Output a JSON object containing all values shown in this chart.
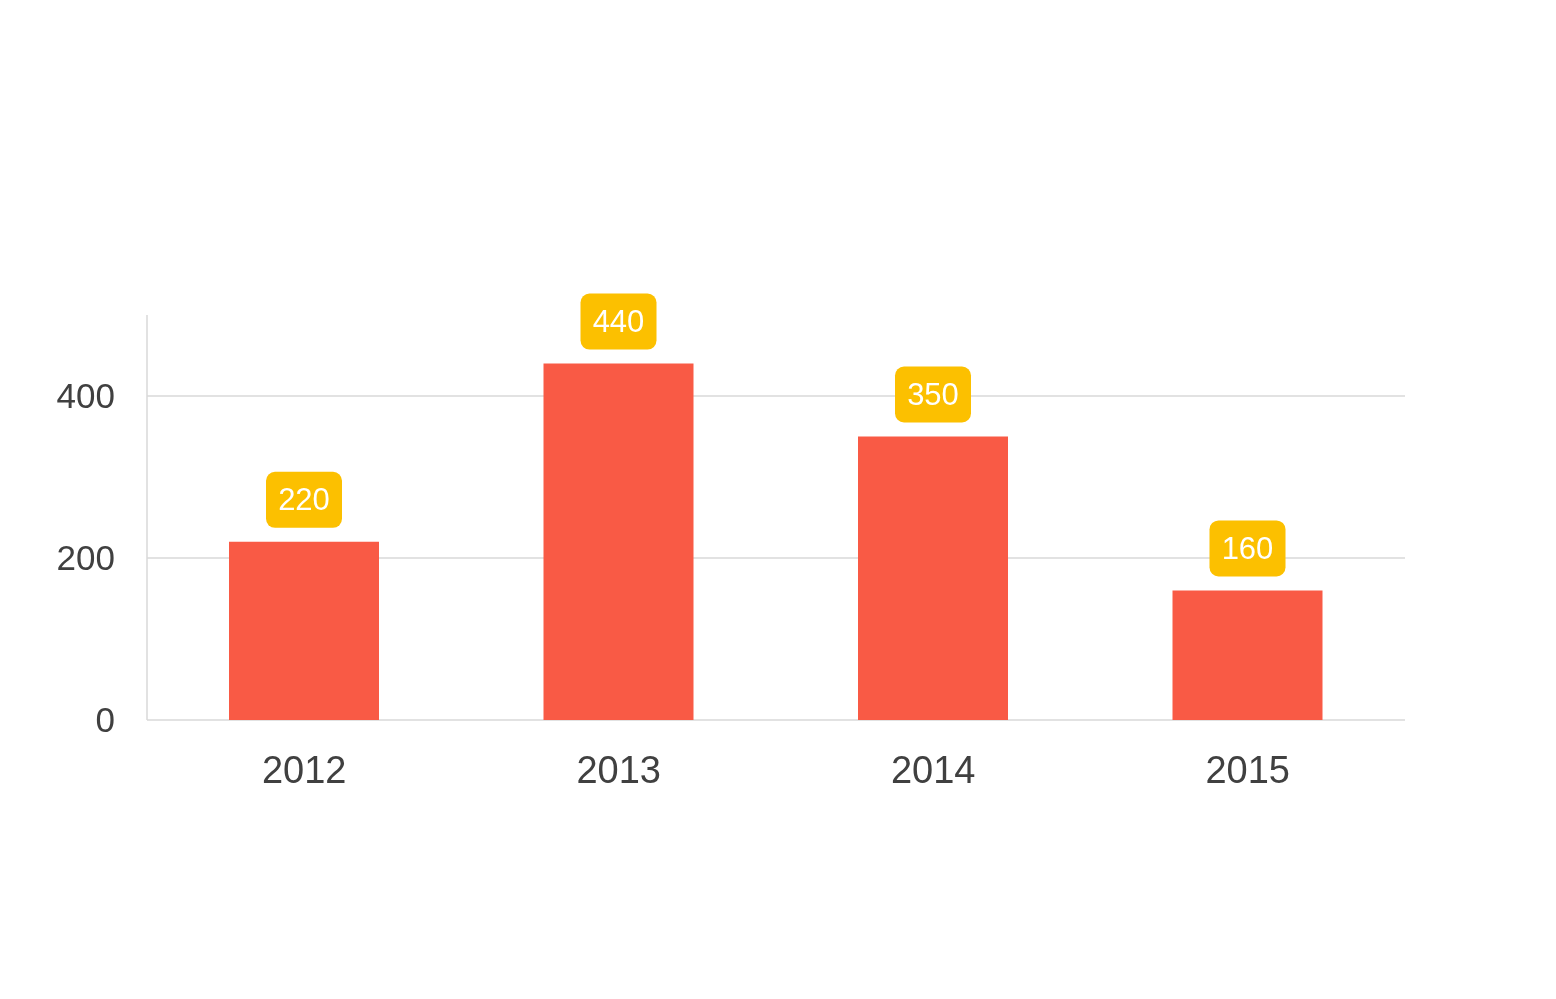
{
  "chart_data": {
    "type": "bar",
    "categories": [
      "2012",
      "2013",
      "2014",
      "2015"
    ],
    "values": [
      220,
      440,
      350,
      160
    ],
    "color": "#f95a45",
    "ylim": [
      0,
      500
    ],
    "yticks": [
      0,
      200,
      400
    ],
    "grid": "y",
    "data_labels": true
  }
}
